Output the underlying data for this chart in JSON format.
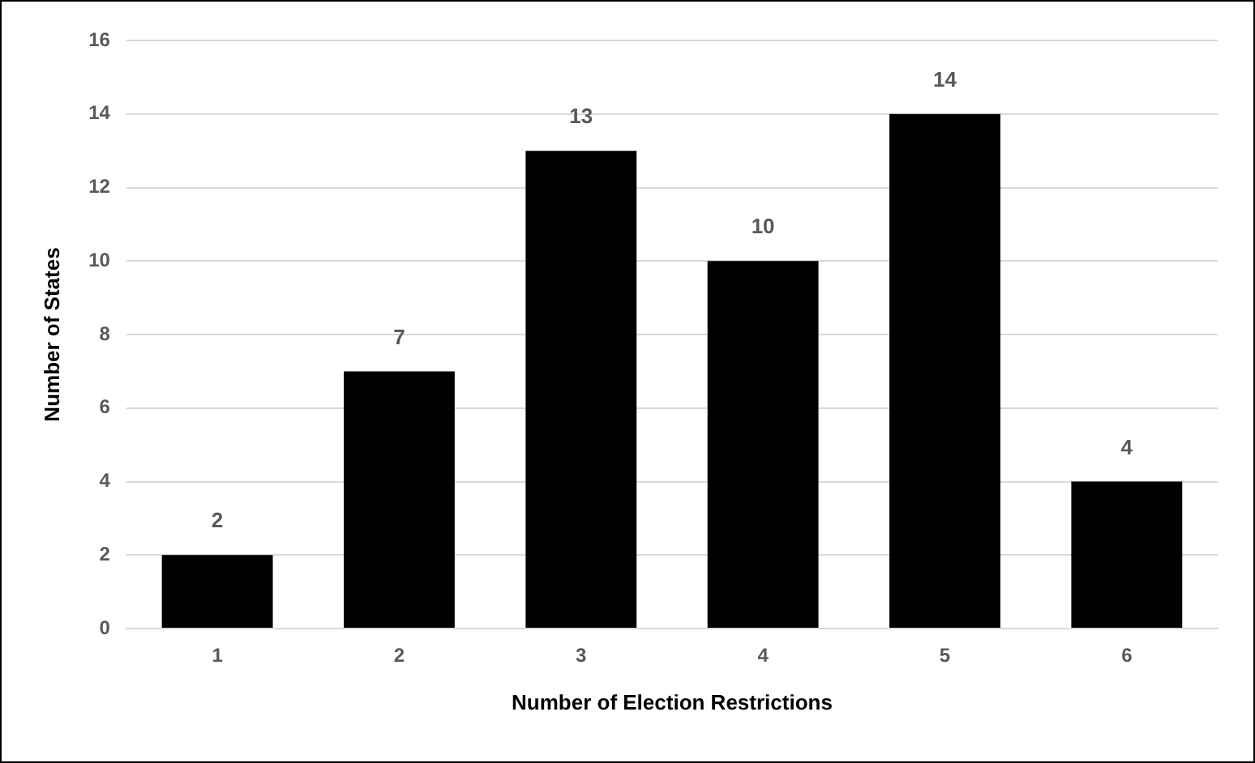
{
  "chart_data": {
    "type": "bar",
    "xlabel": "Number of Election Restrictions",
    "ylabel": "Number of States",
    "categories": [
      "1",
      "2",
      "3",
      "4",
      "5",
      "6"
    ],
    "values": [
      2,
      7,
      13,
      10,
      14,
      4
    ],
    "color": "#000000",
    "ylim": [
      0,
      16
    ],
    "yticks": [
      0,
      2,
      4,
      6,
      8,
      10,
      12,
      14,
      16
    ],
    "grid": "y",
    "legend": false,
    "data_labels": true
  }
}
